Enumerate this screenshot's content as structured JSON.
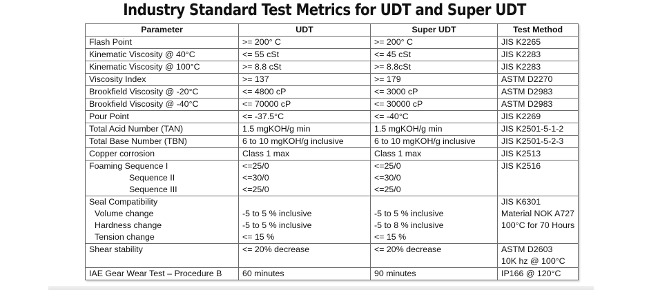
{
  "title": "Industry Standard Test Metrics for UDT and Super UDT",
  "table": {
    "headers": [
      "Parameter",
      "UDT",
      "Super UDT",
      "Test Method"
    ],
    "rows": [
      {
        "param": "Flash Point",
        "udt": ">= 200° C",
        "super": ">= 200° C",
        "method": "JIS K2265"
      },
      {
        "param": "Kinematic Viscosity @ 40°C",
        "udt": "<= 55 cSt",
        "super": "<= 45 cSt",
        "method": "JIS K2283"
      },
      {
        "param": "Kinematic Viscosity @ 100°C",
        "udt": ">= 8.8 cSt",
        "super": ">= 8.8cSt",
        "method": "JIS K2283"
      },
      {
        "param": "Viscosity Index",
        "udt": ">= 137",
        "super": ">= 179",
        "method": "ASTM D2270"
      },
      {
        "param": "Brookfield Viscosity @ -20°C",
        "udt": "<= 4800 cP",
        "super": "<= 3000 cP",
        "method": "ASTM D2983"
      },
      {
        "param": "Brookfield Viscosity @ -40°C",
        "udt": "<= 70000 cP",
        "super": "<= 30000 cP",
        "method": "ASTM D2983"
      },
      {
        "param": "Pour Point",
        "udt": "<= -37.5°C",
        "super": "<= -40°C",
        "method": "JIS K2269"
      },
      {
        "param": "Total Acid Number (TAN)",
        "udt": "1.5 mgKOH/g min",
        "super": "1.5 mgKOH/g min",
        "method": "JIS K2501-5-1-2"
      },
      {
        "param": "Total Base Number (TBN)",
        "udt": "6 to 10 mgKOH/g inclusive",
        "super": "6 to 10 mgKOH/g inclusive",
        "method": "JIS K2501-5-2-3"
      },
      {
        "param": "Copper corrosion",
        "udt": "Class 1 max",
        "super": "Class 1 max",
        "method": "JIS K2513"
      }
    ],
    "foaming": {
      "param": [
        "Foaming  Sequence I",
        "Sequence II",
        "Sequence III"
      ],
      "udt": [
        "<=25/0",
        "<=30/0",
        "<=25/0"
      ],
      "super": [
        "<=25/0",
        "<=30/0",
        "<=25/0"
      ],
      "method": "JIS K2516"
    },
    "seal": {
      "param": [
        "Seal Compatibility",
        "Volume change",
        "Hardness change",
        "Tension change"
      ],
      "udt": [
        "-5 to 5 % inclusive",
        "-5 to 5 % inclusive",
        "<= 15 %"
      ],
      "super": [
        "-5 to 5 % inclusive",
        "-5 to 8 % inclusive",
        "<= 15 %"
      ],
      "method": [
        "JIS K6301",
        "Material NOK A727",
        "100°C  for 70 Hours"
      ]
    },
    "shear": {
      "param": "Shear stability",
      "udt": "<= 20% decrease",
      "super": "<= 20% decrease",
      "method": [
        "ASTM D2603",
        "10K hz @ 100°C"
      ]
    },
    "gear": {
      "param": "IAE Gear Wear Test – Procedure B",
      "udt": "60 minutes",
      "super": "90 minutes",
      "method": "IP166 @ 120°C"
    }
  }
}
